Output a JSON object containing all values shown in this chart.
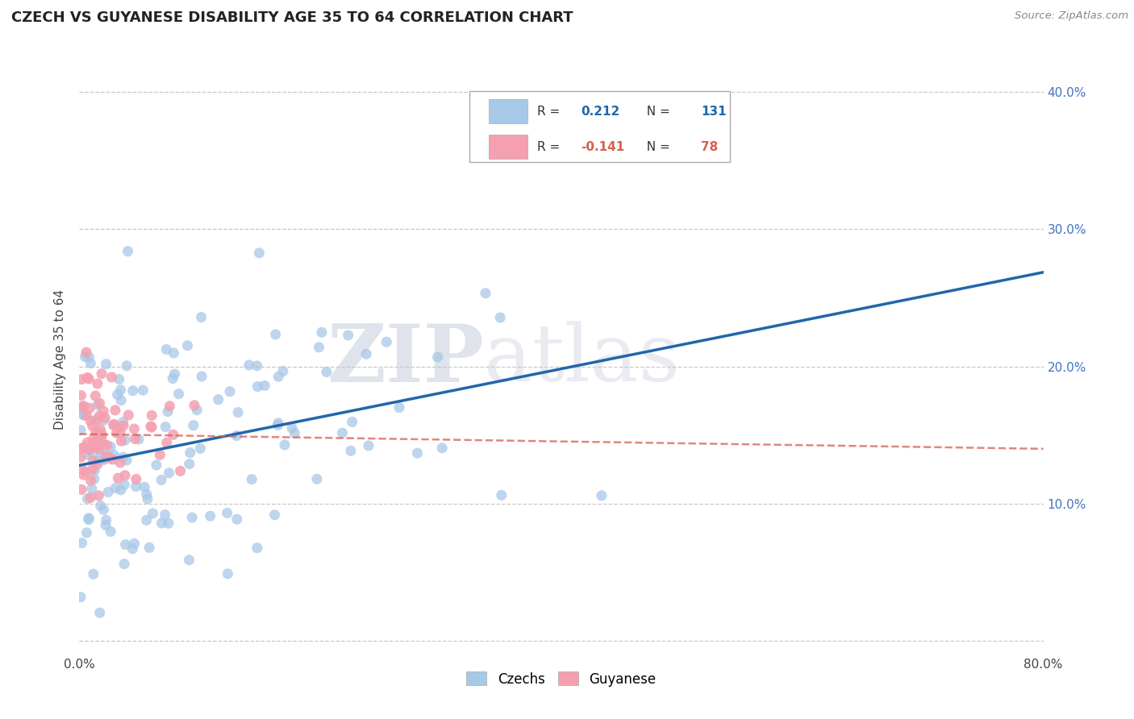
{
  "title": "CZECH VS GUYANESE DISABILITY AGE 35 TO 64 CORRELATION CHART",
  "source": "Source: ZipAtlas.com",
  "ylabel": "Disability Age 35 to 64",
  "xlim": [
    0.0,
    0.8
  ],
  "ylim": [
    -0.01,
    0.42
  ],
  "czech_color": "#a8c8e8",
  "czech_color_line": "#2166ac",
  "guyanese_color": "#f4a0b0",
  "guyanese_color_line": "#d6604d",
  "czech_R": 0.212,
  "czech_N": 131,
  "guyanese_R": -0.141,
  "guyanese_N": 78,
  "watermark_zip": "ZIP",
  "watermark_atlas": "atlas",
  "background_color": "#ffffff",
  "grid_color": "#c8c8c8",
  "right_tick_color": "#4472C4",
  "title_color": "#222222",
  "source_color": "#888888"
}
